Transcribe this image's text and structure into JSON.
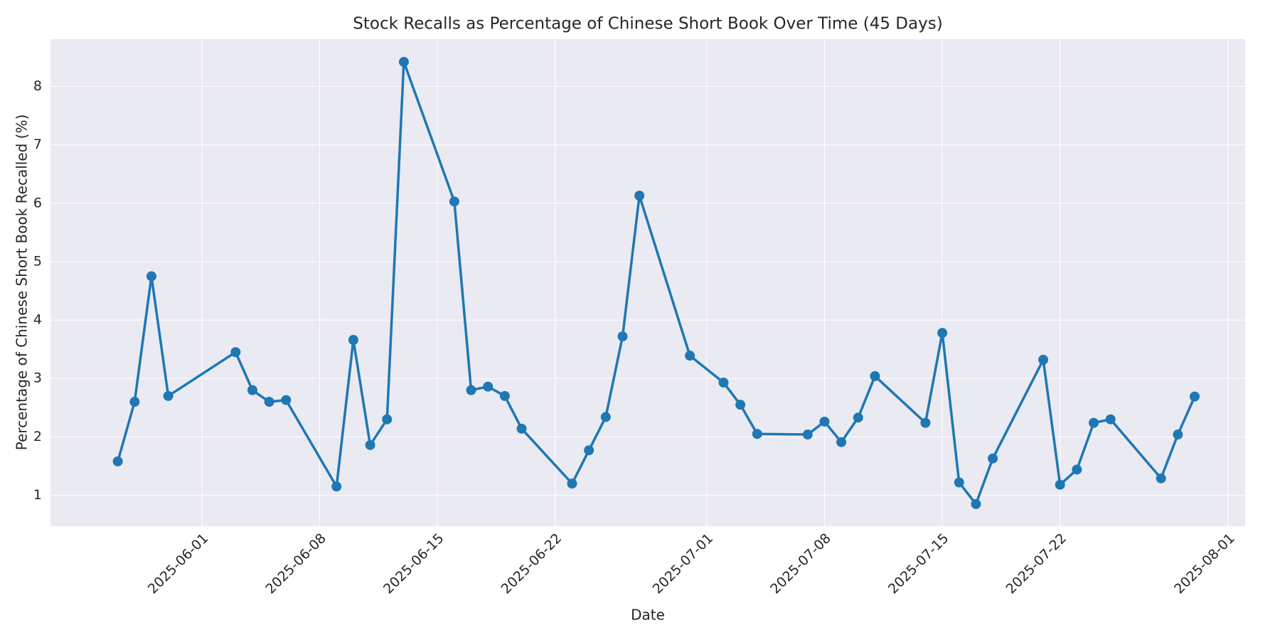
{
  "chart_data": {
    "type": "line",
    "title": "Stock Recalls as Percentage of Chinese Short Book Over Time (45 Days)",
    "x_label": "Date",
    "y_label": "Percentage of Chinese Short Book Recalled (%)",
    "x": [
      "2025-05-27",
      "2025-05-28",
      "2025-05-29",
      "2025-05-30",
      "2025-06-03",
      "2025-06-04",
      "2025-06-05",
      "2025-06-06",
      "2025-06-09",
      "2025-06-10",
      "2025-06-11",
      "2025-06-12",
      "2025-06-13",
      "2025-06-16",
      "2025-06-17",
      "2025-06-18",
      "2025-06-19",
      "2025-06-20",
      "2025-06-23",
      "2025-06-24",
      "2025-06-25",
      "2025-06-26",
      "2025-06-27",
      "2025-06-30",
      "2025-07-02",
      "2025-07-03",
      "2025-07-04",
      "2025-07-07",
      "2025-07-08",
      "2025-07-09",
      "2025-07-10",
      "2025-07-11",
      "2025-07-14",
      "2025-07-15",
      "2025-07-16",
      "2025-07-17",
      "2025-07-18",
      "2025-07-21",
      "2025-07-22",
      "2025-07-23",
      "2025-07-24",
      "2025-07-25",
      "2025-07-28",
      "2025-07-29",
      "2025-07-30"
    ],
    "series": [
      {
        "color": "#1f77b4",
        "values": [
          1.58,
          2.6,
          4.75,
          2.7,
          3.45,
          2.8,
          2.6,
          2.63,
          1.15,
          3.66,
          1.86,
          2.3,
          8.42,
          6.03,
          2.8,
          2.86,
          2.7,
          2.14,
          1.2,
          1.77,
          2.34,
          3.72,
          6.13,
          3.39,
          2.93,
          2.55,
          2.05,
          2.04,
          2.26,
          1.91,
          2.33,
          3.04,
          2.24,
          3.78,
          1.22,
          0.85,
          1.63,
          3.32,
          1.18,
          1.44,
          2.24,
          2.3,
          1.29,
          2.04,
          2.69
        ]
      }
    ],
    "xlim": [
      "2025-05-23",
      "2025-08-02"
    ],
    "xticks": [
      "2025-06-01",
      "2025-06-08",
      "2025-06-15",
      "2025-06-22",
      "2025-07-01",
      "2025-07-08",
      "2025-07-15",
      "2025-07-22",
      "2025-08-01"
    ],
    "ylim": [
      0.47,
      8.81
    ],
    "yticks": [
      1,
      2,
      3,
      4,
      5,
      6,
      7,
      8
    ],
    "grid": true
  }
}
